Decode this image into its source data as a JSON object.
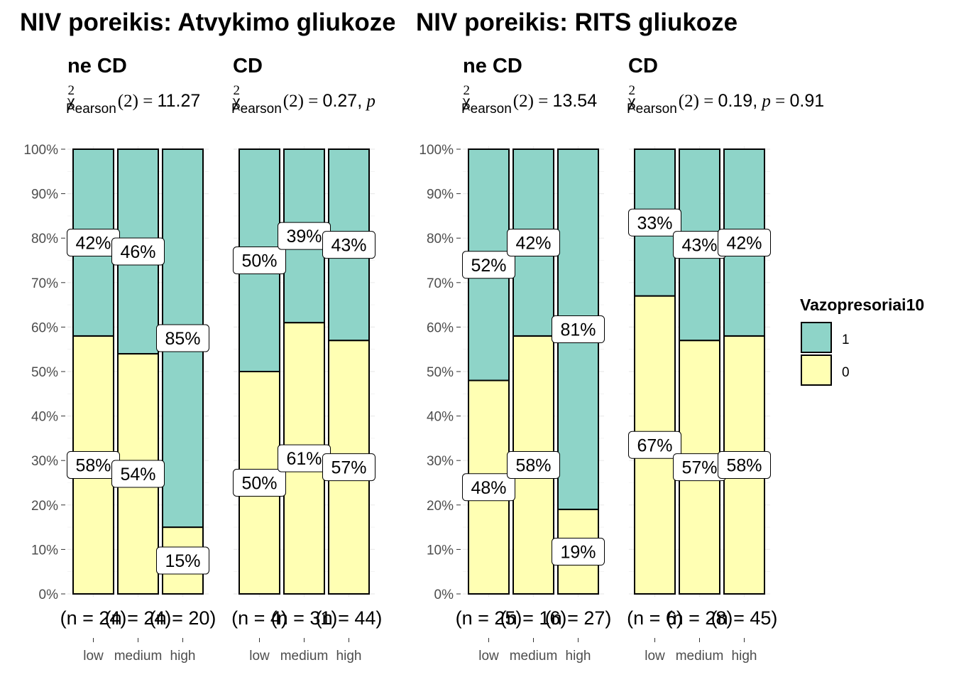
{
  "colors": {
    "level_1": "#8ed4c8",
    "level_0": "#ffffb3",
    "bar_outline": "#000000",
    "grid": "#ebebeb",
    "tick_text": "#4d4d4d"
  },
  "legend": {
    "title": "Vazopresoriai10",
    "entries": [
      "1",
      "0"
    ]
  },
  "y_ticks": [
    "0%",
    "10%",
    "20%",
    "30%",
    "40%",
    "50%",
    "60%",
    "70%",
    "80%",
    "90%",
    "100%"
  ],
  "chart_data": [
    {
      "type": "bar",
      "stacked": true,
      "title": "NIV poreikis: Atvykimo gliukoze",
      "panels": [
        {
          "title": "ne CD",
          "stat": {
            "chi": "χ",
            "sup": "2",
            "sub": "Pearson",
            "df": "(2)",
            "eq": "=",
            "value": "11.27"
          },
          "categories": [
            "low",
            "medium",
            "high"
          ],
          "series": [
            {
              "name": "1",
              "values": [
                0.42,
                0.46,
                0.85
              ],
              "labels": [
                "42%",
                "46%",
                "85%"
              ]
            },
            {
              "name": "0",
              "values": [
                0.58,
                0.54,
                0.15
              ],
              "labels": [
                "58%",
                "54%",
                "15%"
              ]
            }
          ],
          "counts": [
            "(n = 24)",
            "(n = 24)",
            "(n = 20)"
          ]
        },
        {
          "title": "CD",
          "stat": {
            "chi": "χ",
            "sup": "2",
            "sub": "Pearson",
            "df": "(2)",
            "eq": "=",
            "value": "0.27,",
            "p": "p"
          },
          "categories": [
            "low",
            "medium",
            "high"
          ],
          "series": [
            {
              "name": "1",
              "values": [
                0.5,
                0.39,
                0.43
              ],
              "labels": [
                "50%",
                "39%",
                "43%"
              ]
            },
            {
              "name": "0",
              "values": [
                0.5,
                0.61,
                0.57
              ],
              "labels": [
                "50%",
                "61%",
                "57%"
              ]
            }
          ],
          "counts": [
            "(n = 4)",
            "(n = 31)",
            "(n = 44)"
          ]
        }
      ],
      "ylim": [
        0,
        1
      ]
    },
    {
      "type": "bar",
      "stacked": true,
      "title": "NIV poreikis: RITS gliukoze",
      "panels": [
        {
          "title": "ne CD",
          "stat": {
            "chi": "χ",
            "sup": "2",
            "sub": "Pearson",
            "df": "(2)",
            "eq": "=",
            "value": "13.54"
          },
          "categories": [
            "low",
            "medium",
            "high"
          ],
          "series": [
            {
              "name": "1",
              "values": [
                0.52,
                0.42,
                0.81
              ],
              "labels": [
                "52%",
                "42%",
                "81%"
              ]
            },
            {
              "name": "0",
              "values": [
                0.48,
                0.58,
                0.19
              ],
              "labels": [
                "48%",
                "58%",
                "19%"
              ]
            }
          ],
          "counts": [
            "(n = 25)",
            "(n = 16)",
            "(n = 27)"
          ]
        },
        {
          "title": "CD",
          "stat": {
            "chi": "χ",
            "sup": "2",
            "sub": "Pearson",
            "df": "(2)",
            "eq": "=",
            "value": "0.19,",
            "p": "p",
            "eq2": "=",
            "pvalue": "0.91"
          },
          "categories": [
            "low",
            "medium",
            "high"
          ],
          "series": [
            {
              "name": "1",
              "values": [
                0.33,
                0.43,
                0.42
              ],
              "labels": [
                "33%",
                "43%",
                "42%"
              ]
            },
            {
              "name": "0",
              "values": [
                0.67,
                0.57,
                0.58
              ],
              "labels": [
                "67%",
                "57%",
                "58%"
              ]
            }
          ],
          "counts": [
            "(n = 6)",
            "(n = 28)",
            "(n = 45)"
          ]
        }
      ],
      "ylim": [
        0,
        1
      ]
    }
  ]
}
